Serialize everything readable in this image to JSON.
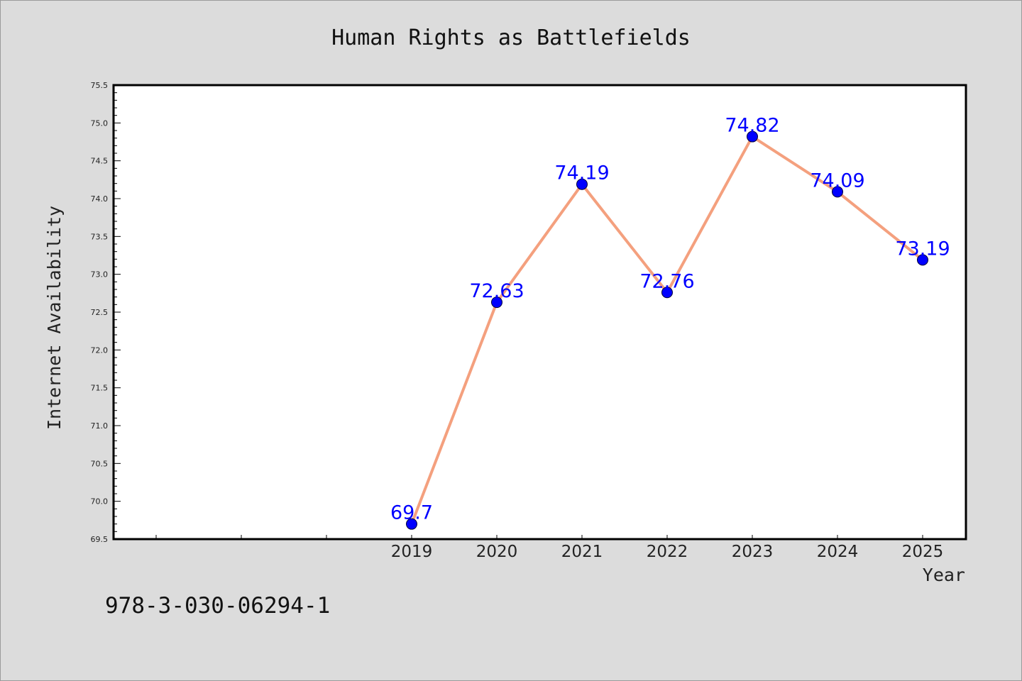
{
  "chart_data": {
    "type": "line",
    "title": "Human Rights as Battlefields",
    "xlabel": "Year",
    "ylabel": "Internet Availability",
    "x": [
      "2019",
      "2020",
      "2021",
      "2022",
      "2023",
      "2024",
      "2025"
    ],
    "series": [
      {
        "values": [
          69.7,
          72.63,
          74.19,
          72.76,
          74.82,
          74.09,
          73.19
        ],
        "data_labels": [
          "69.7",
          "72.63",
          "74.19",
          "72.76",
          "74.82",
          "74.09",
          "73.19"
        ]
      }
    ],
    "ylim": [
      69.5,
      75.5
    ],
    "y_ticks": [
      "69.5",
      "70.0",
      "70.5",
      "71.0",
      "71.5",
      "72.0",
      "72.5",
      "73.0",
      "73.5",
      "74.0",
      "74.5",
      "75.0",
      "75.5"
    ],
    "x_slots": 10,
    "grid": false,
    "colors": {
      "line": "#f4a07e",
      "marker": "#0000ff",
      "label": "#0000ff",
      "plot_background": "#ffffff",
      "page_background": "#dcdcdc"
    }
  },
  "footer": {
    "isbn": "978-3-030-06294-1"
  }
}
